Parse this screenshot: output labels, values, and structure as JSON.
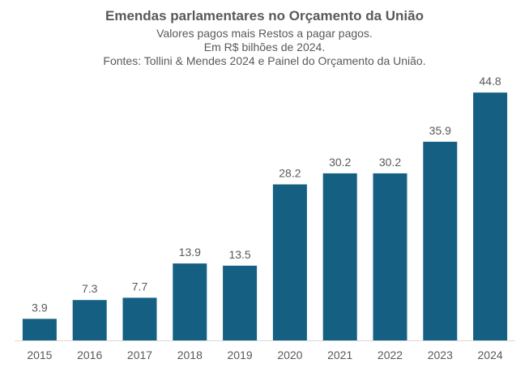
{
  "chart_data": {
    "type": "bar",
    "title": "Emendas parlamentares no Orçamento da União",
    "subtitle_lines": [
      "Valores pagos mais Restos a pagar pagos.",
      "Em R$ bilhões de 2024.",
      "Fontes: Tollini & Mendes 2024 e Painel do Orçamento da União."
    ],
    "categories": [
      "2015",
      "2016",
      "2017",
      "2018",
      "2019",
      "2020",
      "2021",
      "2022",
      "2023",
      "2024"
    ],
    "values": [
      3.9,
      7.3,
      7.7,
      13.9,
      13.5,
      28.2,
      30.2,
      30.2,
      35.9,
      44.8
    ],
    "value_labels": [
      "3.9",
      "7.3",
      "7.7",
      "13.9",
      "13.5",
      "28.2",
      "30.2",
      "30.2",
      "35.9",
      "44.8"
    ],
    "ylim": [
      0,
      46
    ],
    "grid": false,
    "legend": "none",
    "bar_color": "#156082",
    "axis_color": "#d9d9d9",
    "text_color": "#595959"
  }
}
